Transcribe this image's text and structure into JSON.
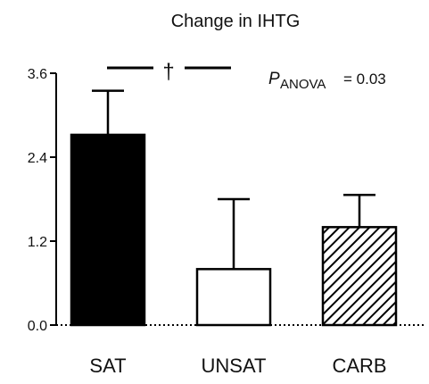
{
  "chart_data": {
    "type": "bar",
    "title": "Change in IHTG",
    "categories": [
      "SAT",
      "UNSAT",
      "CARB"
    ],
    "values": [
      2.72,
      0.8,
      1.4
    ],
    "error_upper": [
      3.35,
      1.8,
      1.86
    ],
    "fills": [
      "solid",
      "white",
      "hatched"
    ],
    "ylim": [
      0,
      3.6
    ],
    "yticks": [
      "0.0",
      "1.2",
      "2.4",
      "3.6"
    ],
    "xlabel": "",
    "ylabel": "",
    "grid": false,
    "annotations": {
      "significance_marker": "†",
      "p_symbol": "P",
      "p_subscript": "ANOVA",
      "p_value": "= 0.03"
    },
    "colors": {
      "bar_outline": "#000000",
      "solid_fill": "#000000",
      "empty_fill": "#ffffff"
    }
  }
}
